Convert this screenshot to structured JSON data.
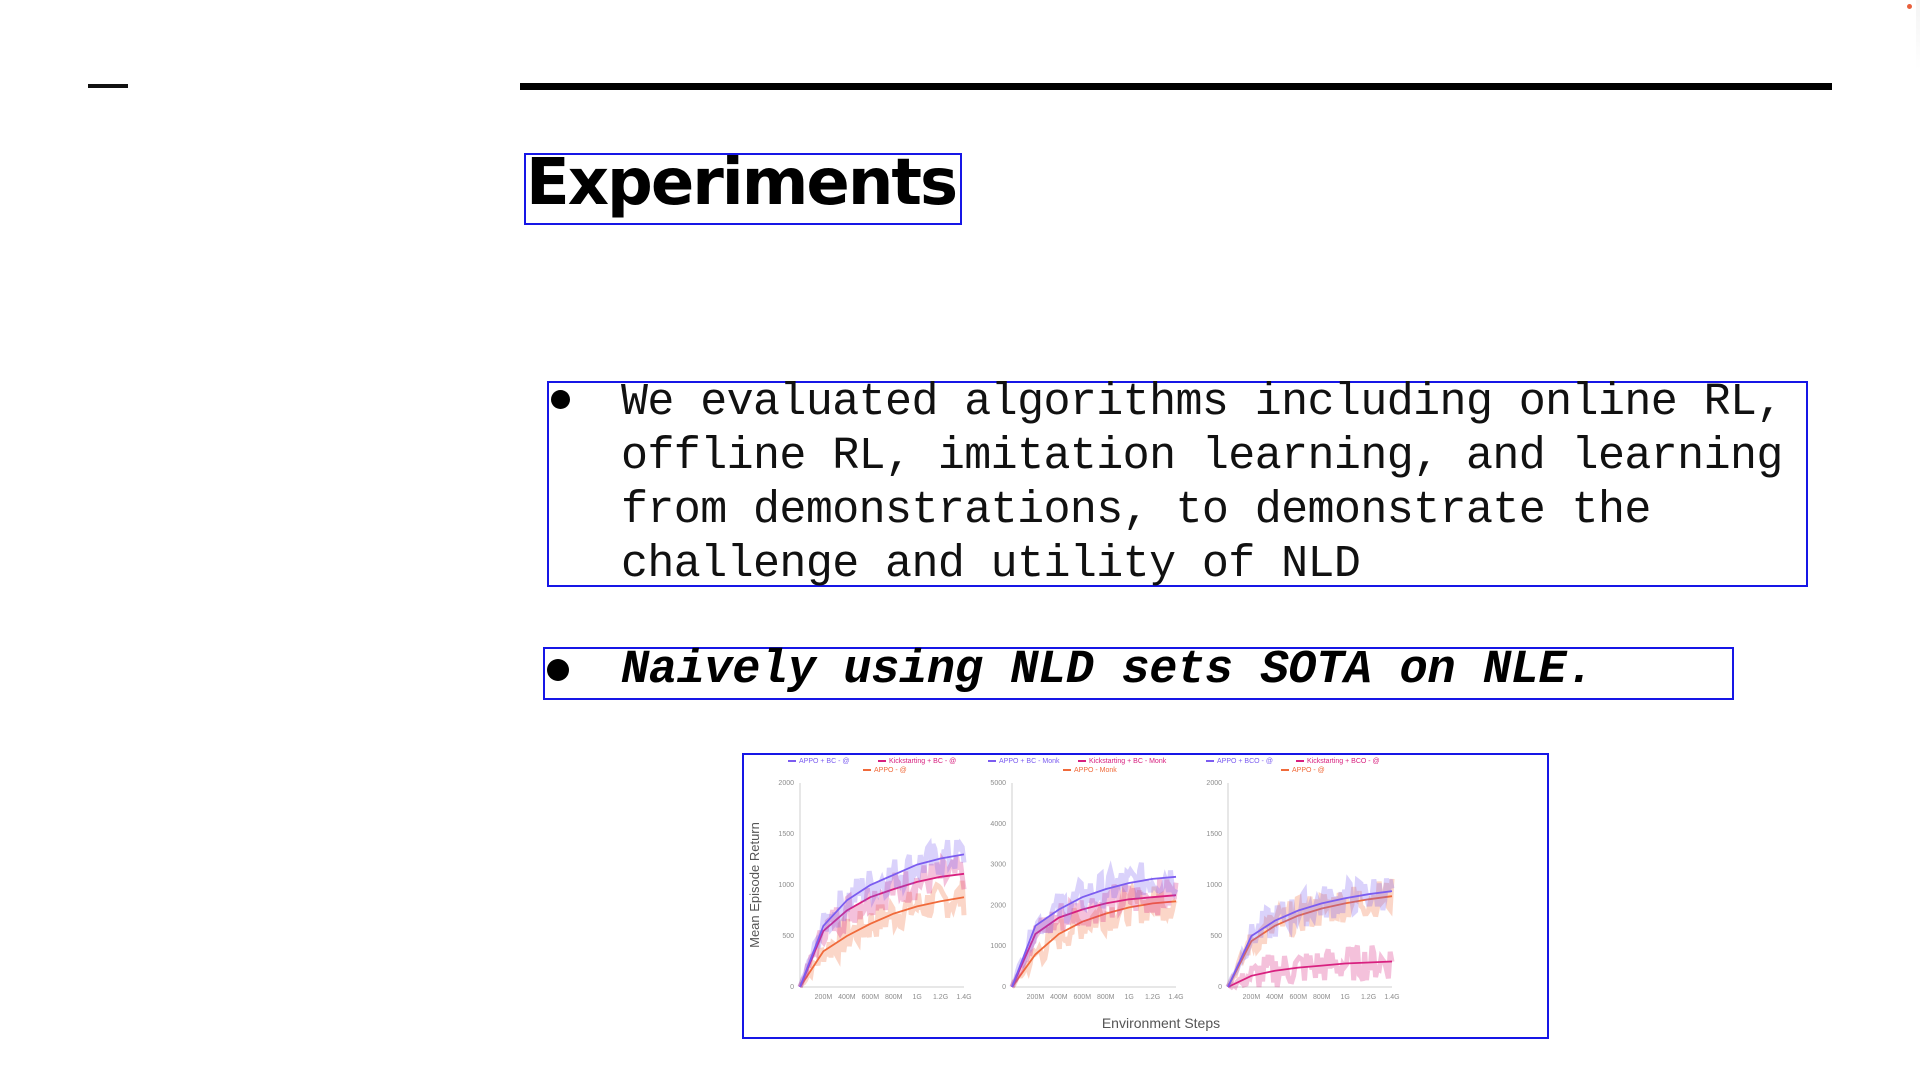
{
  "slide": {
    "title": "Experiments",
    "bullets": [
      {
        "lines": [
          "We evaluated algorithms including online RL,",
          "offline RL, imitation learning, and learning",
          "from demonstrations, to demonstrate the",
          "challenge and utility of NLD"
        ]
      },
      {
        "text": "Naively using NLD sets SOTA on NLE."
      }
    ]
  },
  "figure": {
    "ylabel": "Mean Episode Return",
    "xlabel": "Environment Steps",
    "x_ticks": [
      "200M",
      "400M",
      "600M",
      "800M",
      "1G",
      "1.2G",
      "1.4G"
    ],
    "colors": {
      "purple": "#7b5cf0",
      "magenta": "#d8207f",
      "orange": "#f06a3a"
    }
  },
  "chart_data": [
    {
      "type": "line",
      "xlabel": "Environment Steps",
      "ylabel": "Mean Episode Return",
      "x": [
        0,
        200,
        400,
        600,
        800,
        1000,
        1200,
        1400
      ],
      "x_ticks": [
        "200M",
        "400M",
        "600M",
        "800M",
        "1G",
        "1.2G",
        "1.4G"
      ],
      "ylim": [
        0,
        2000
      ],
      "y_ticks": [
        0,
        500,
        1000,
        1500,
        2000
      ],
      "series": [
        {
          "name": "APPO + BC - @",
          "color": "#7b5cf0",
          "values": [
            0,
            600,
            850,
            1000,
            1100,
            1200,
            1260,
            1300
          ]
        },
        {
          "name": "Kickstarting + BC - @",
          "color": "#d8207f",
          "values": [
            0,
            550,
            750,
            880,
            960,
            1030,
            1080,
            1110
          ]
        },
        {
          "name": "APPO - @",
          "color": "#f06a3a",
          "values": [
            0,
            350,
            500,
            620,
            720,
            790,
            840,
            880
          ]
        }
      ]
    },
    {
      "type": "line",
      "xlabel": "Environment Steps",
      "ylabel": "Mean Episode Return",
      "x": [
        0,
        200,
        400,
        600,
        800,
        1000,
        1200,
        1400
      ],
      "x_ticks": [
        "200M",
        "400M",
        "600M",
        "800M",
        "1G",
        "1.2G",
        "1.4G"
      ],
      "ylim": [
        0,
        5000
      ],
      "y_ticks": [
        0,
        1000,
        2000,
        3000,
        4000,
        5000
      ],
      "series": [
        {
          "name": "APPO + BC - Monk",
          "color": "#7b5cf0",
          "values": [
            0,
            1500,
            1900,
            2200,
            2400,
            2550,
            2650,
            2700
          ]
        },
        {
          "name": "Kickstarting + BC - Monk",
          "color": "#d8207f",
          "values": [
            0,
            1300,
            1700,
            1900,
            2050,
            2150,
            2200,
            2250
          ]
        },
        {
          "name": "APPO - Monk",
          "color": "#f06a3a",
          "values": [
            0,
            800,
            1300,
            1600,
            1800,
            1950,
            2050,
            2100
          ]
        }
      ]
    },
    {
      "type": "line",
      "xlabel": "Environment Steps",
      "ylabel": "Mean Episode Return",
      "x": [
        0,
        200,
        400,
        600,
        800,
        1000,
        1200,
        1400
      ],
      "x_ticks": [
        "200M",
        "400M",
        "600M",
        "800M",
        "1G",
        "1.2G",
        "1.4G"
      ],
      "ylim": [
        0,
        2000
      ],
      "y_ticks": [
        0,
        500,
        1000,
        1500,
        2000
      ],
      "series": [
        {
          "name": "APPO + BCO - @",
          "color": "#7b5cf0",
          "values": [
            0,
            500,
            650,
            750,
            820,
            870,
            910,
            940
          ]
        },
        {
          "name": "Kickstarting + BCO - @",
          "color": "#d8207f",
          "values": [
            0,
            110,
            160,
            190,
            210,
            230,
            240,
            250
          ]
        },
        {
          "name": "APPO - @",
          "color": "#f06a3a",
          "values": [
            0,
            450,
            600,
            700,
            770,
            820,
            860,
            890
          ]
        }
      ]
    }
  ]
}
